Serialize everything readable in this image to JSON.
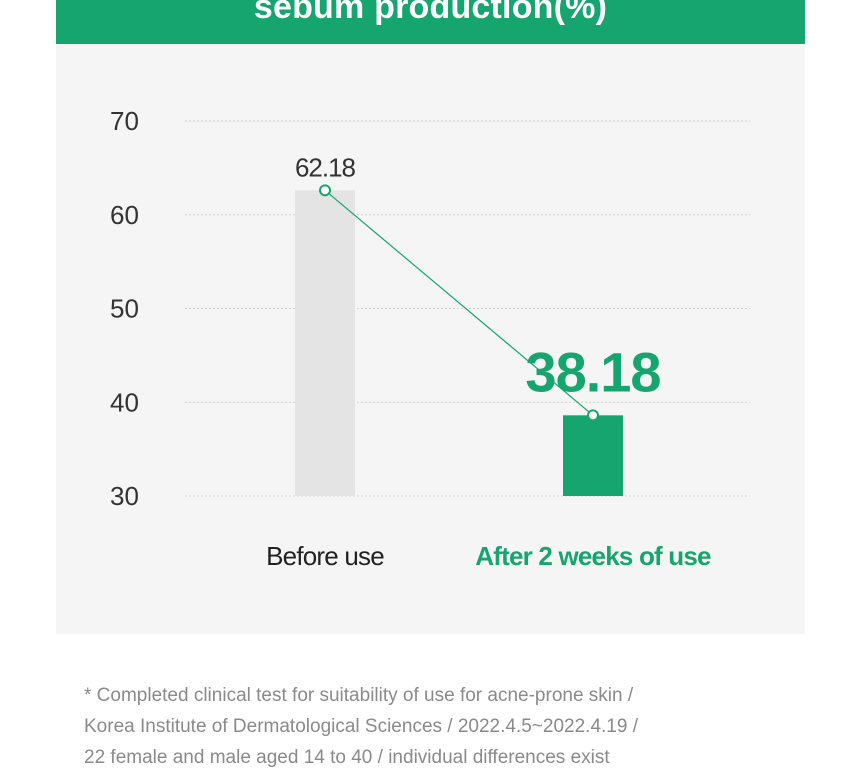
{
  "header": {
    "title": "sebum production(%)"
  },
  "chart_data": {
    "type": "bar",
    "title": "sebum production(%)",
    "categories": [
      "Before use",
      "After 2 weeks of use"
    ],
    "values": [
      62.18,
      38.18
    ],
    "data_labels": [
      "62.18",
      "38.18"
    ],
    "y_ticks": [
      "70",
      "60",
      "50",
      "40",
      "30"
    ],
    "ylim": [
      30,
      70
    ],
    "grid": true,
    "colors": {
      "before_bar": "#e4e4e4",
      "after_bar": "#16a56f",
      "trend_line": "#16a56f",
      "after_label": "#16a56f",
      "before_label": "#333333"
    }
  },
  "footnote": {
    "lines": [
      "* Completed clinical test for suitability of use for acne-prone skin /",
      "Korea Institute of Dermatological Sciences / 2022.4.5~2022.4.19 /",
      "22 female and male aged 14 to 40 / individual differences exist"
    ]
  }
}
